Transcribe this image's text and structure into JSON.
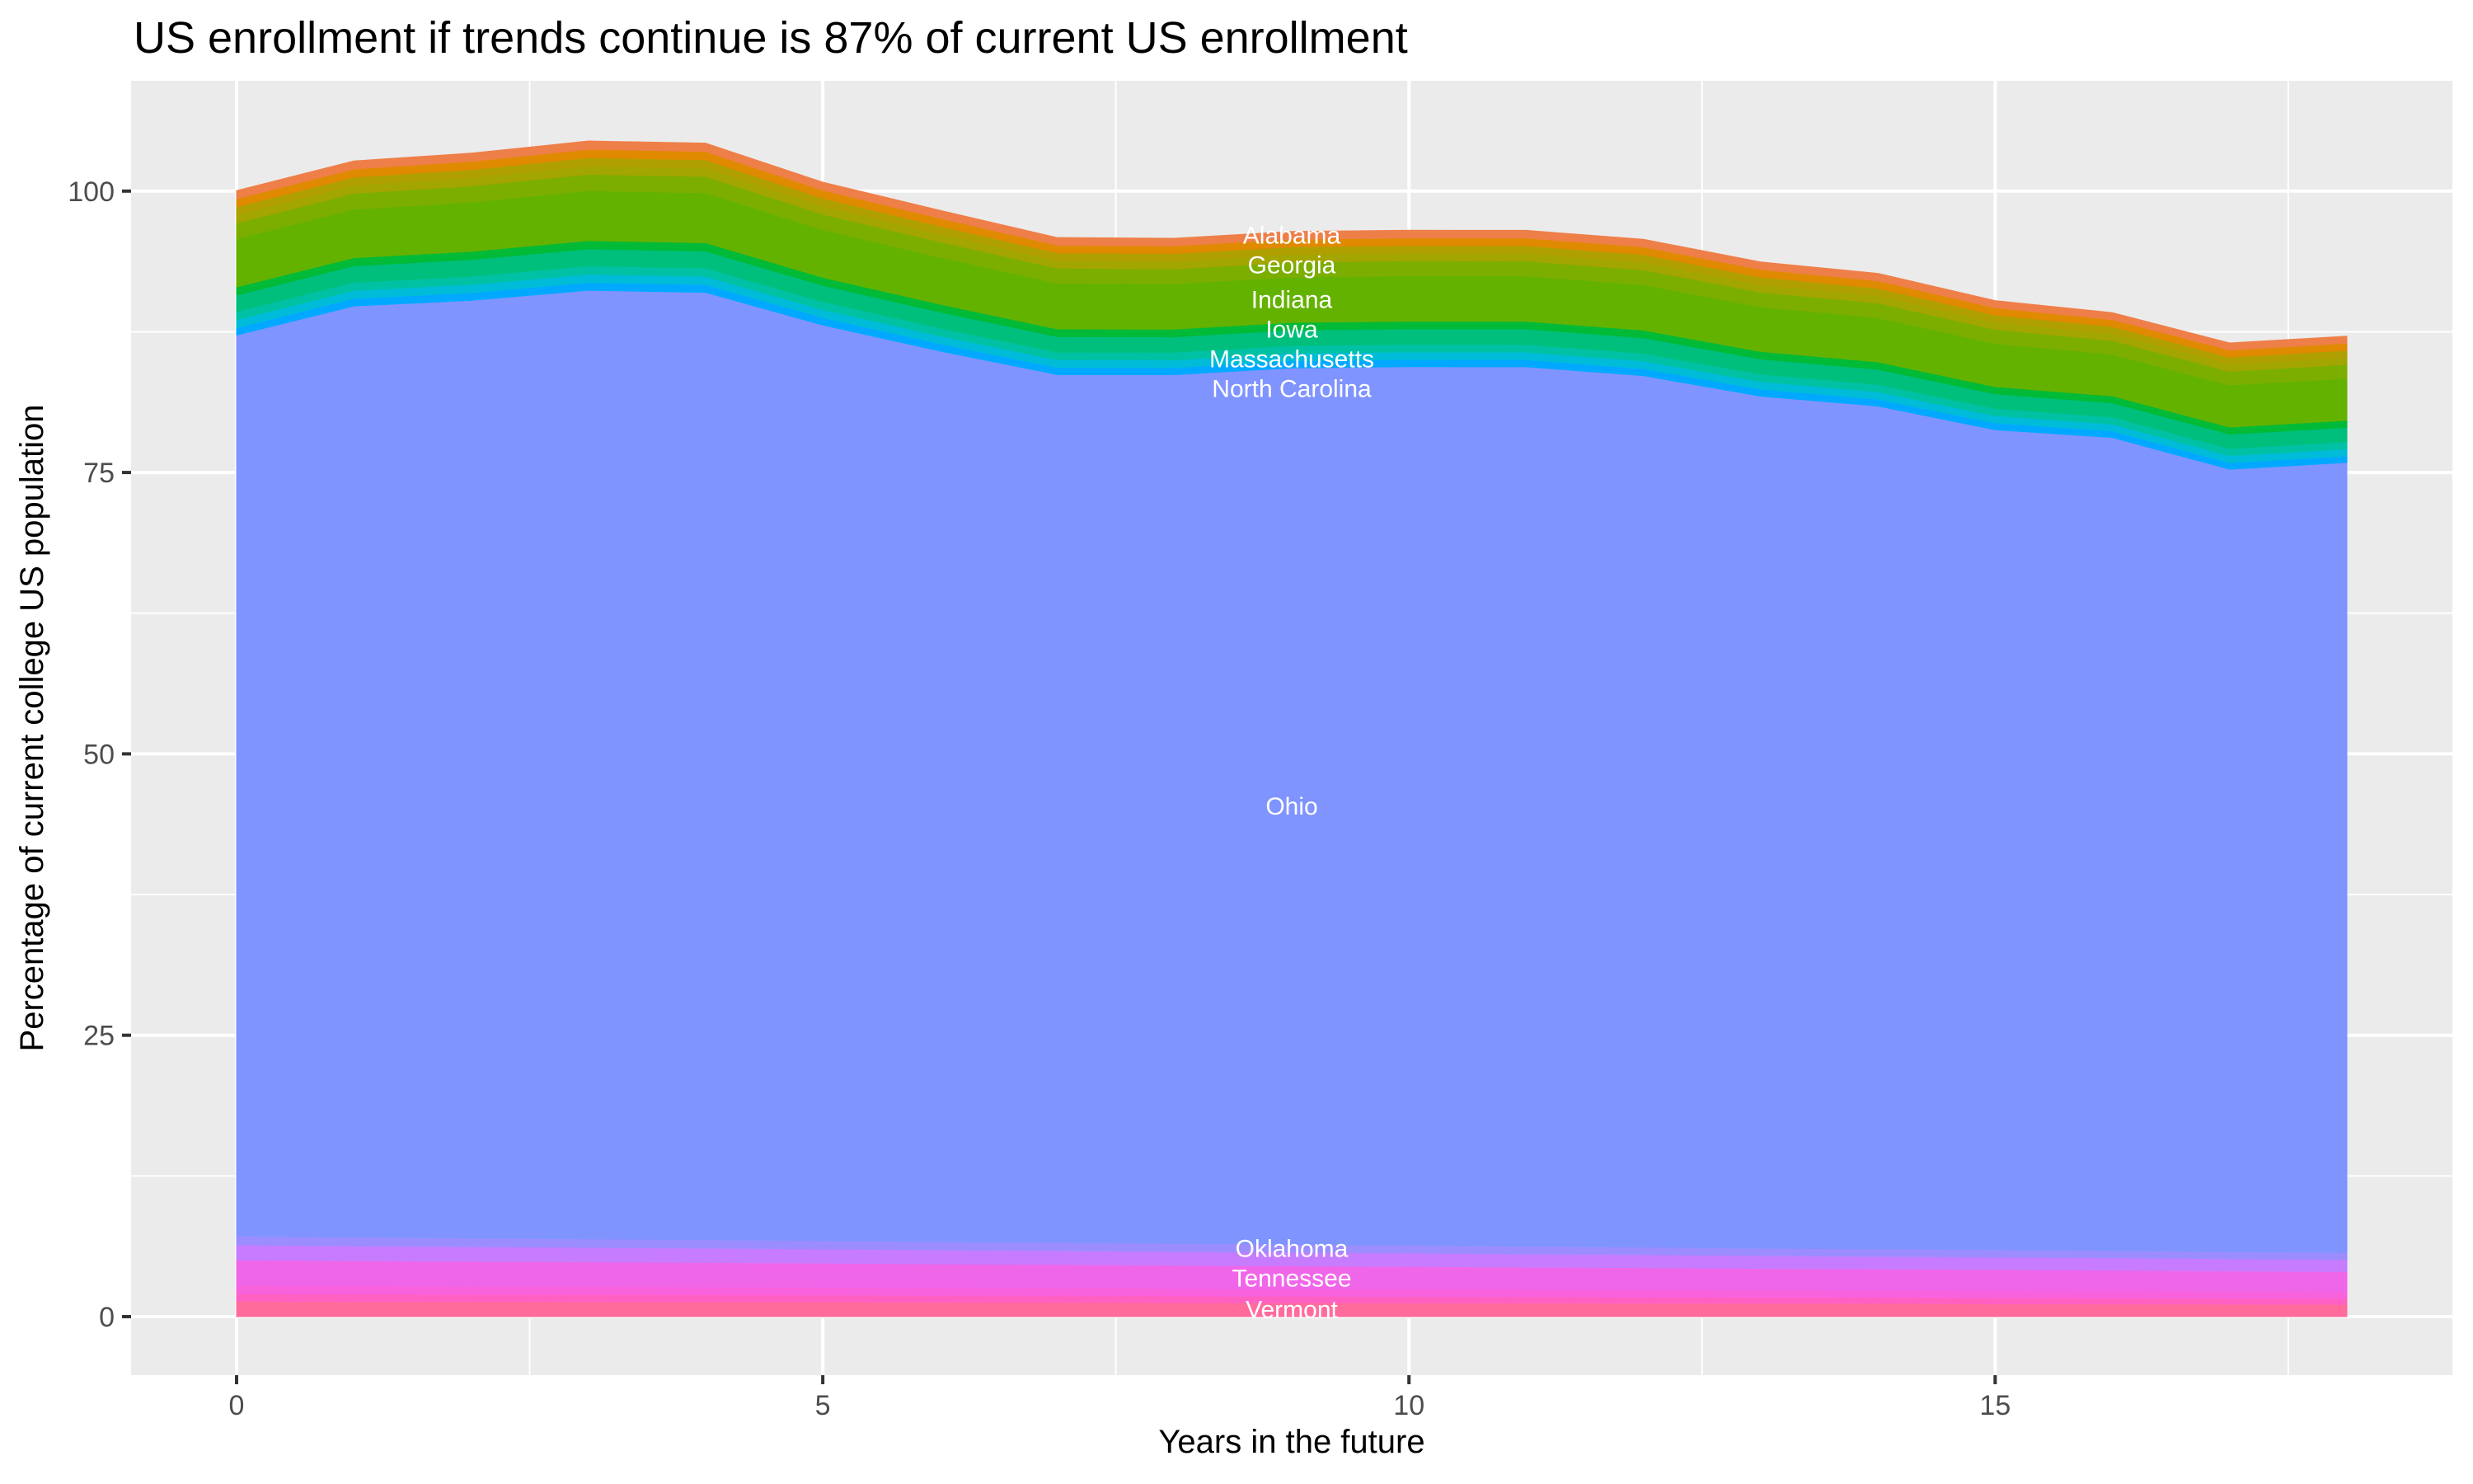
{
  "chart_data": {
    "type": "area",
    "stacked": true,
    "title": "US enrollment if trends continue is 87% of current US enrollment",
    "xlabel": "Years in the future",
    "ylabel": "Percentage of current college US population",
    "x": [
      0,
      1,
      2,
      3,
      4,
      5,
      6,
      7,
      8,
      9,
      10,
      11,
      12,
      13,
      14,
      15,
      16,
      17,
      18
    ],
    "xlim": [
      -0.9,
      18.9
    ],
    "ylim": [
      -5.2,
      109.8
    ],
    "xticks": [
      0,
      5,
      10,
      15
    ],
    "xtick_labels": [
      "0",
      "5",
      "10",
      "15"
    ],
    "yticks": [
      0,
      25,
      50,
      75,
      100
    ],
    "ytick_labels": [
      "0",
      "25",
      "50",
      "75",
      "100"
    ],
    "grid": true,
    "legend": "none",
    "label_at_x": 9,
    "series_bottom_to_top": [
      {
        "name": "Vermont",
        "color": "#FF6C9C",
        "values": [
          1.37,
          1.36,
          1.34,
          1.33,
          1.31,
          1.3,
          1.28,
          1.27,
          1.25,
          1.23,
          1.22,
          1.2,
          1.19,
          1.17,
          1.16,
          1.14,
          1.13,
          1.11,
          1.09
        ]
      },
      {
        "color": "#FF61C3",
        "values": [
          0.66,
          0.65,
          0.64,
          0.64,
          0.63,
          0.62,
          0.61,
          0.61,
          0.6,
          0.59,
          0.58,
          0.58,
          0.57,
          0.56,
          0.55,
          0.55,
          0.54,
          0.53,
          0.52
        ]
      },
      {
        "color": "#F962DD",
        "values": [
          0.73,
          0.72,
          0.71,
          0.7,
          0.7,
          0.69,
          0.68,
          0.67,
          0.66,
          0.65,
          0.65,
          0.64,
          0.63,
          0.62,
          0.61,
          0.61,
          0.6,
          0.59,
          0.58
        ]
      },
      {
        "name": "Tennessee",
        "color": "#F066E9",
        "values": [
          2.27,
          2.24,
          2.22,
          2.19,
          2.17,
          2.14,
          2.11,
          2.09,
          2.06,
          2.04,
          2.01,
          1.98,
          1.96,
          1.93,
          1.91,
          1.88,
          1.86,
          1.83,
          1.81
        ]
      },
      {
        "color": "#C77CFF",
        "values": [
          1.34,
          1.32,
          1.31,
          1.29,
          1.28,
          1.26,
          1.25,
          1.23,
          1.22,
          1.2,
          1.19,
          1.17,
          1.16,
          1.14,
          1.13,
          1.11,
          1.1,
          1.08,
          1.07
        ]
      },
      {
        "name": "Oklahoma",
        "color": "#9C8DFF",
        "values": [
          0.78,
          0.77,
          0.76,
          0.75,
          0.74,
          0.74,
          0.73,
          0.72,
          0.71,
          0.7,
          0.69,
          0.68,
          0.67,
          0.66,
          0.66,
          0.65,
          0.64,
          0.63,
          0.62
        ]
      },
      {
        "name": "Ohio",
        "color": "#8094FF",
        "values": [
          80.05,
          82.73,
          83.31,
          84.29,
          84.17,
          81.35,
          79.13,
          77.11,
          77.19,
          77.88,
          78.06,
          78.14,
          77.42,
          75.7,
          74.88,
          72.86,
          72.24,
          69.52,
          70.2
        ]
      },
      {
        "name": "North Carolina",
        "color": "#00A9FF",
        "values": [
          0.67,
          0.67,
          0.68,
          0.69,
          0.69,
          0.66,
          0.65,
          0.63,
          0.63,
          0.63,
          0.63,
          0.63,
          0.63,
          0.62,
          0.61,
          0.6,
          0.58,
          0.58,
          0.58
        ]
      },
      {
        "color": "#00BCD8",
        "values": [
          0.72,
          0.72,
          0.73,
          0.74,
          0.74,
          0.71,
          0.7,
          0.68,
          0.68,
          0.68,
          0.68,
          0.68,
          0.68,
          0.67,
          0.66,
          0.64,
          0.62,
          0.63,
          0.63
        ]
      },
      {
        "color": "#00C1A3",
        "values": [
          0.72,
          0.72,
          0.73,
          0.74,
          0.74,
          0.71,
          0.7,
          0.68,
          0.68,
          0.68,
          0.68,
          0.68,
          0.68,
          0.67,
          0.66,
          0.64,
          0.62,
          0.63,
          0.63
        ]
      },
      {
        "name": "Massachusetts",
        "color": "#00BF7D",
        "values": [
          1.45,
          1.46,
          1.48,
          1.5,
          1.5,
          1.44,
          1.41,
          1.38,
          1.37,
          1.37,
          1.37,
          1.37,
          1.37,
          1.34,
          1.33,
          1.3,
          1.25,
          1.27,
          1.27
        ]
      },
      {
        "name": "Iowa",
        "color": "#00BA38",
        "values": [
          0.72,
          0.72,
          0.73,
          0.74,
          0.74,
          0.71,
          0.7,
          0.68,
          0.68,
          0.68,
          0.68,
          0.68,
          0.68,
          0.67,
          0.66,
          0.64,
          0.62,
          0.63,
          0.63
        ]
      },
      {
        "name": "Indiana",
        "color": "#64B200",
        "values": [
          4.28,
          4.31,
          4.38,
          4.44,
          4.44,
          4.24,
          4.18,
          4.07,
          4.04,
          4.04,
          4.04,
          4.04,
          4.04,
          3.97,
          3.94,
          3.84,
          3.71,
          3.74,
          3.74
        ]
      },
      {
        "color": "#7CAE00",
        "values": [
          1.4,
          1.41,
          1.43,
          1.45,
          1.45,
          1.38,
          1.36,
          1.33,
          1.32,
          1.32,
          1.32,
          1.32,
          1.32,
          1.3,
          1.29,
          1.25,
          1.21,
          1.22,
          1.22
        ]
      },
      {
        "color": "#A3A500",
        "values": [
          0.72,
          0.72,
          0.73,
          0.74,
          0.74,
          0.71,
          0.7,
          0.68,
          0.68,
          0.68,
          0.68,
          0.68,
          0.68,
          0.67,
          0.66,
          0.64,
          0.62,
          0.63,
          0.63
        ]
      },
      {
        "name": "Georgia",
        "color": "#B09F00",
        "values": [
          0.72,
          0.72,
          0.73,
          0.74,
          0.74,
          0.71,
          0.7,
          0.68,
          0.68,
          0.68,
          0.68,
          0.68,
          0.68,
          0.67,
          0.66,
          0.64,
          0.62,
          0.63,
          0.63
        ]
      },
      {
        "color": "#E08A00",
        "values": [
          0.72,
          0.72,
          0.73,
          0.74,
          0.74,
          0.71,
          0.7,
          0.68,
          0.68,
          0.68,
          0.68,
          0.68,
          0.68,
          0.67,
          0.66,
          0.64,
          0.62,
          0.63,
          0.63
        ]
      },
      {
        "name": "Alabama",
        "color": "#EF7F49",
        "values": [
          0.72,
          0.72,
          0.73,
          0.74,
          0.74,
          0.71,
          0.7,
          0.68,
          0.68,
          0.68,
          0.68,
          0.68,
          0.68,
          0.67,
          0.66,
          0.64,
          0.62,
          0.63,
          0.63
        ]
      }
    ]
  }
}
